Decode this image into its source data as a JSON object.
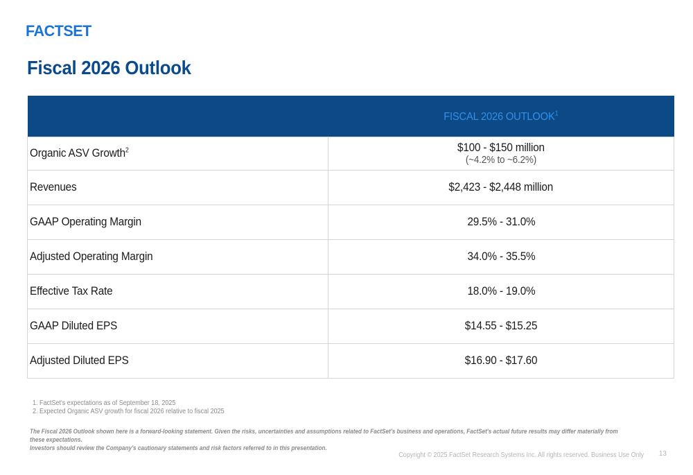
{
  "logo": "FACTSET",
  "title": "Fiscal 2026 Outlook",
  "table": {
    "header_label": "FISCAL 2026 OUTLOOK",
    "header_sup": "1",
    "rows": [
      {
        "metric": "Organic ASV Growth",
        "metric_sup": "2",
        "value": "$100 - $150 million",
        "subvalue": "(~4.2% to ~6.2%)"
      },
      {
        "metric": "Revenues",
        "value": "$2,423 - $2,448 million"
      },
      {
        "metric": "GAAP Operating Margin",
        "value": "29.5% - 31.0%"
      },
      {
        "metric": "Adjusted Operating Margin",
        "value": "34.0% - 35.5%"
      },
      {
        "metric": "Effective Tax Rate",
        "value": "18.0% - 19.0%"
      },
      {
        "metric": "GAAP Diluted EPS",
        "value": "$14.55 - $15.25"
      },
      {
        "metric": "Adjusted Diluted EPS",
        "value": "$16.90 - $17.60"
      }
    ]
  },
  "footnotes": [
    "1.  FactSet's expectations as of September 18, 2025",
    "2.  Expected Organic ASV growth for fiscal 2026 relative to fiscal 2025"
  ],
  "disclaimer": [
    "The Fiscal 2026 Outlook shown here is a forward-looking statement.  Given the risks, uncertainties and assumptions related to FactSet's business and operations, FactSet's actual future results may differ materially from these expectations.",
    "Investors should review the Company's cautionary statements and risk factors referred to in this presentation."
  ],
  "copyright": "Copyright © 2025 FactSet Research Systems Inc. All rights reserved. Business Use Only",
  "page_number": "13",
  "colors": {
    "brand_blue": "#1a73d6",
    "title_navy": "#0b4a8b",
    "header_bg": "#0d4a85",
    "header_text": "#2f8fe9"
  }
}
